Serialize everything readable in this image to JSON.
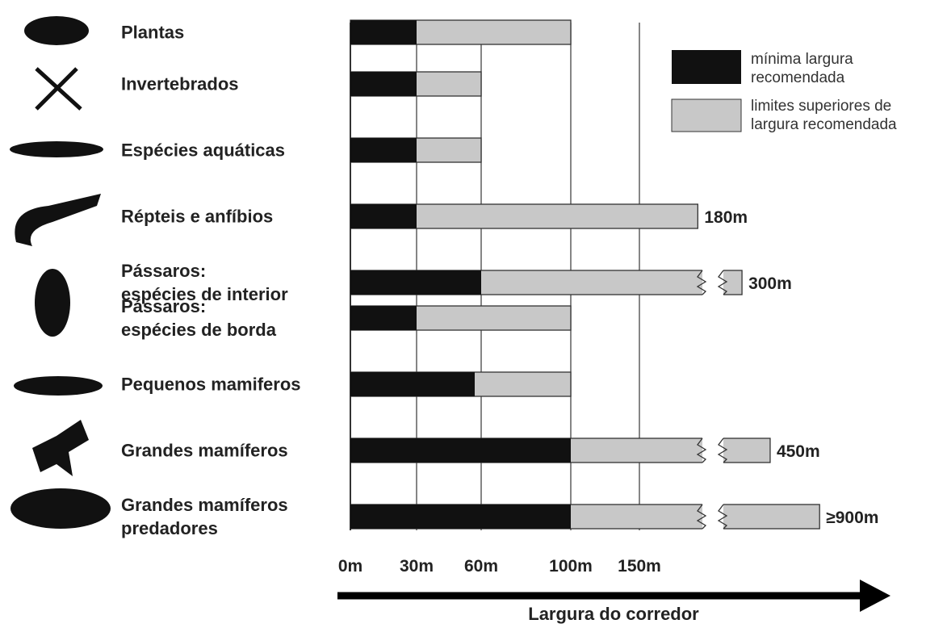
{
  "chart_data": {
    "type": "range-bar",
    "x_label": "Largura do corredor",
    "categories": [
      "Plantas",
      "Invertebrados",
      "Espécies aquáticas",
      "Répteis e anfíbios",
      "Pássaros:\nespécies de interior",
      "Pássaros:\nespécies de borda",
      "Pequenos mamiferos",
      "Grandes mamíferos",
      "Grandes mamíferos\npredadores"
    ],
    "series": [
      {
        "name": "limites superiores de\nlargura recomendada",
        "color": "#c8c8c8",
        "values": [
          100,
          60,
          60,
          180,
          300,
          100,
          100,
          450,
          900
        ],
        "value_labels": [
          null,
          null,
          null,
          "180m",
          "300m",
          null,
          null,
          "450m",
          "≥900m"
        ]
      },
      {
        "name": "mínima largura\nrecomendada",
        "color": "#111111",
        "values": [
          30,
          30,
          30,
          30,
          60,
          30,
          57,
          100,
          100
        ]
      }
    ],
    "xticks": [
      {
        "value": 0,
        "label": "0m"
      },
      {
        "value": 30,
        "label": "30m"
      },
      {
        "value": 60,
        "label": "60m"
      },
      {
        "value": 100,
        "label": "100m"
      },
      {
        "value": 150,
        "label": "150m"
      }
    ],
    "grid": true
  }
}
